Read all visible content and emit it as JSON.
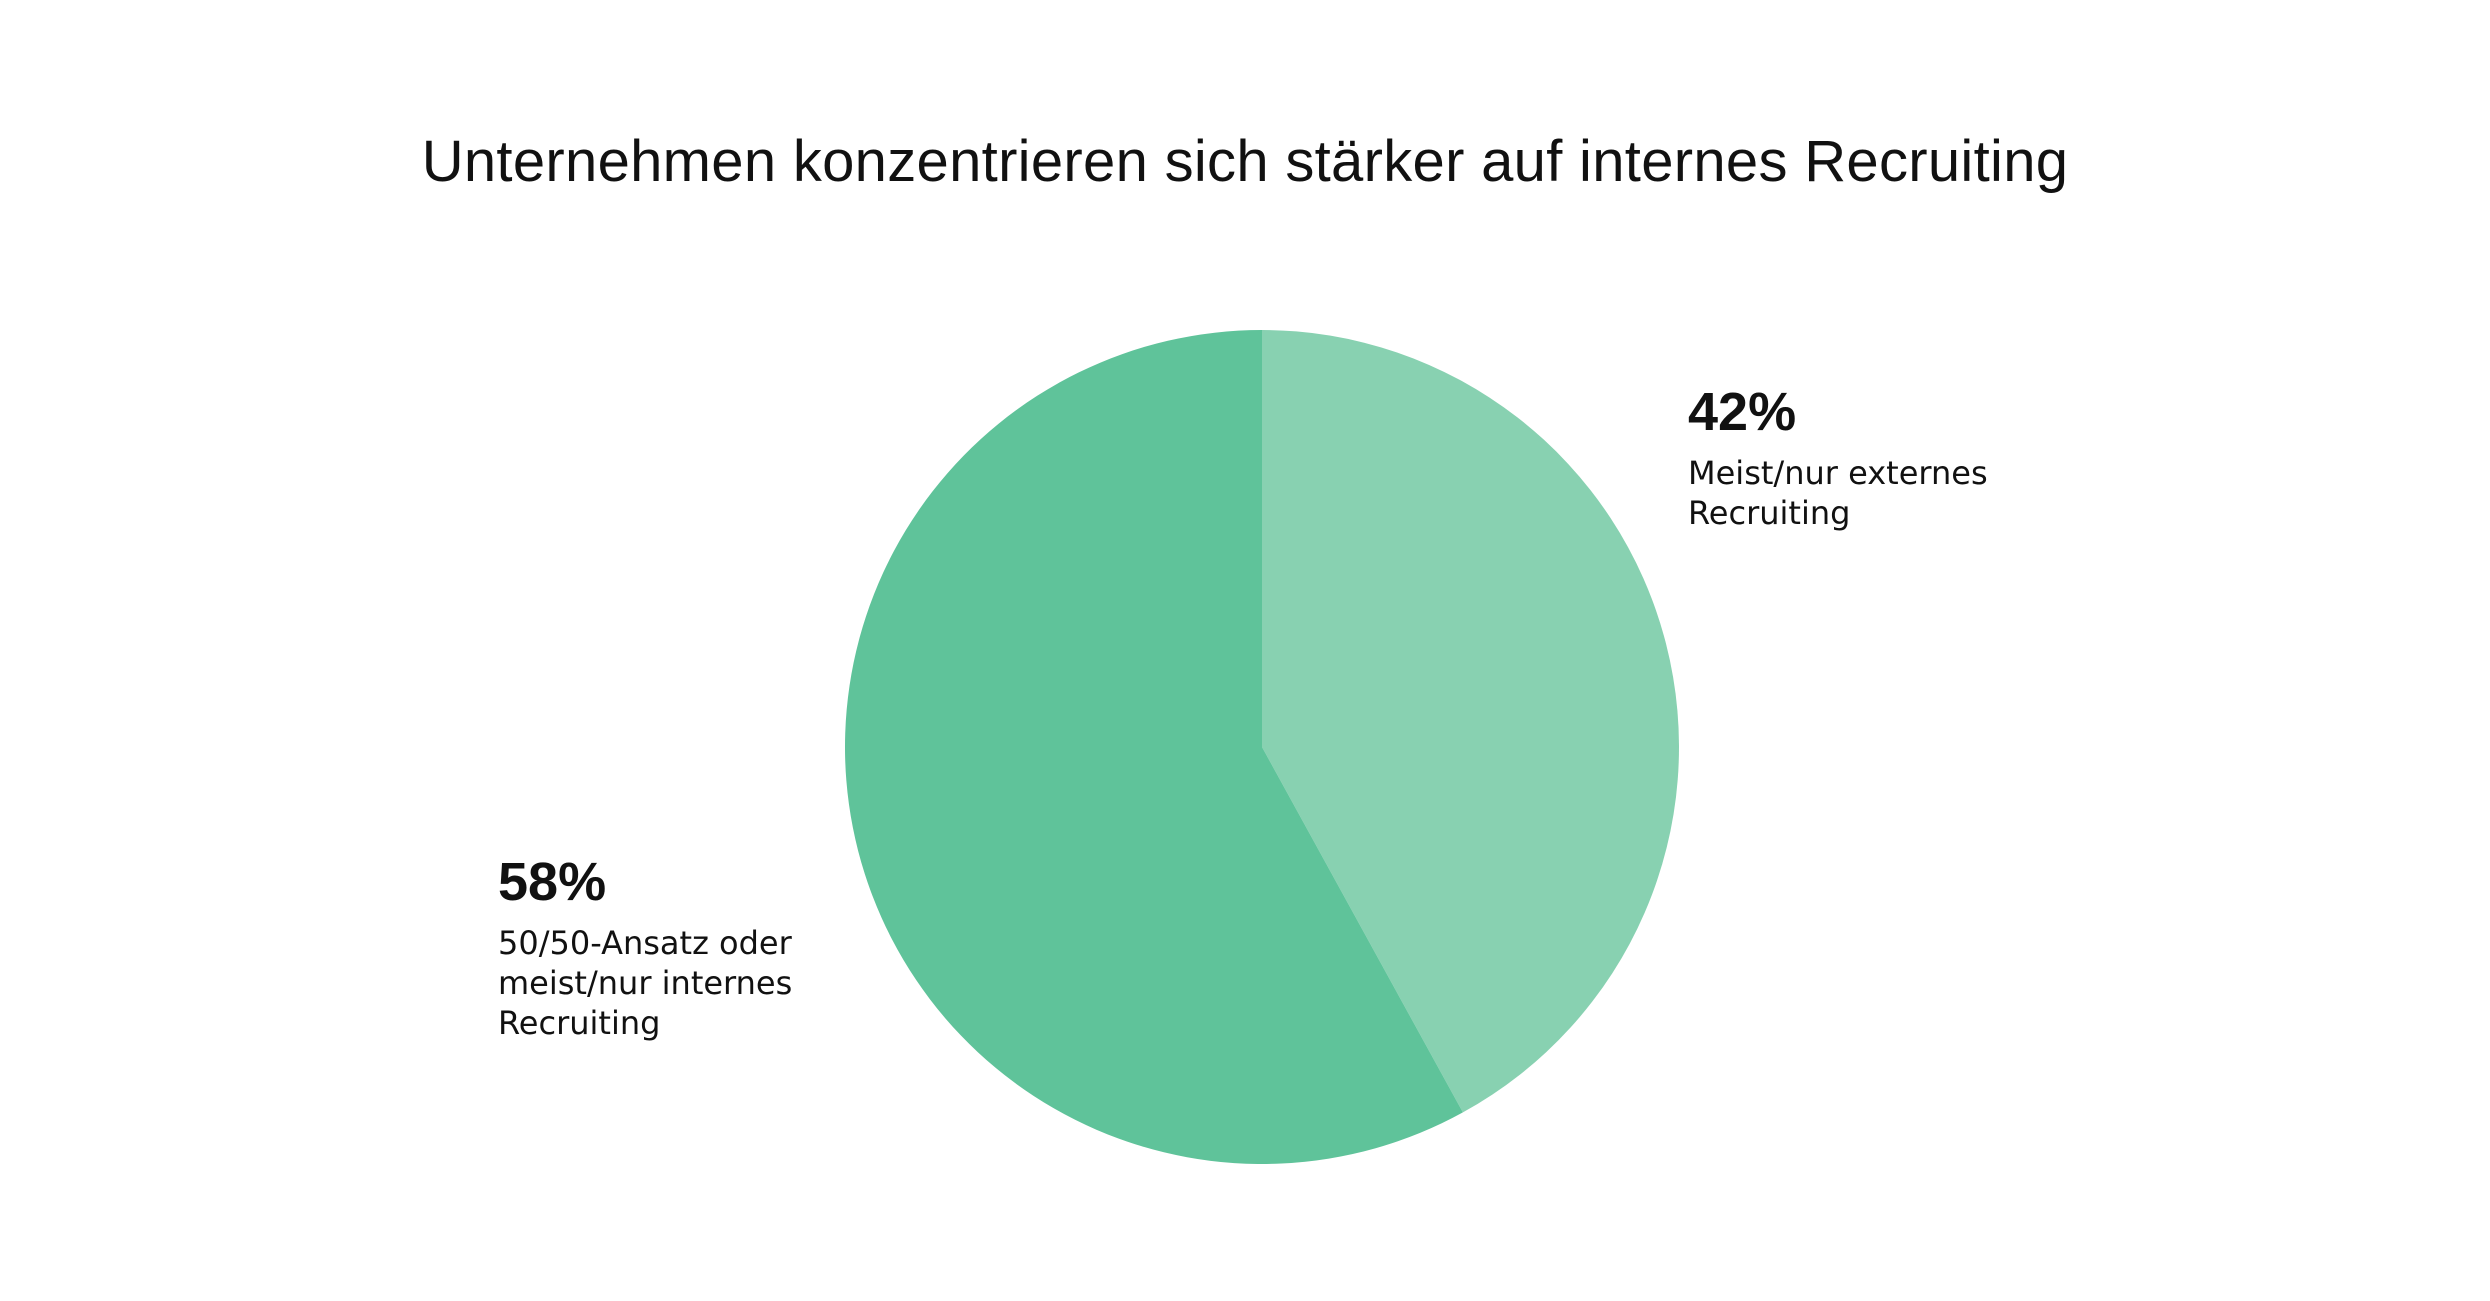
{
  "chart_data": {
    "type": "pie",
    "title": "Unternehmen konzentrieren sich stärker auf internes Recruiting",
    "slices": [
      {
        "label": "Meist/nur externes Recruiting",
        "value": 42,
        "value_label": "42%",
        "color": "#88d1b1"
      },
      {
        "label": "50/50-Ansatz oder meist/nur internes Recruiting",
        "value": 58,
        "value_label": "58%",
        "color": "#5fc39a"
      }
    ],
    "start": "12 o'clock",
    "direction": "clockwise",
    "legend": "none"
  }
}
